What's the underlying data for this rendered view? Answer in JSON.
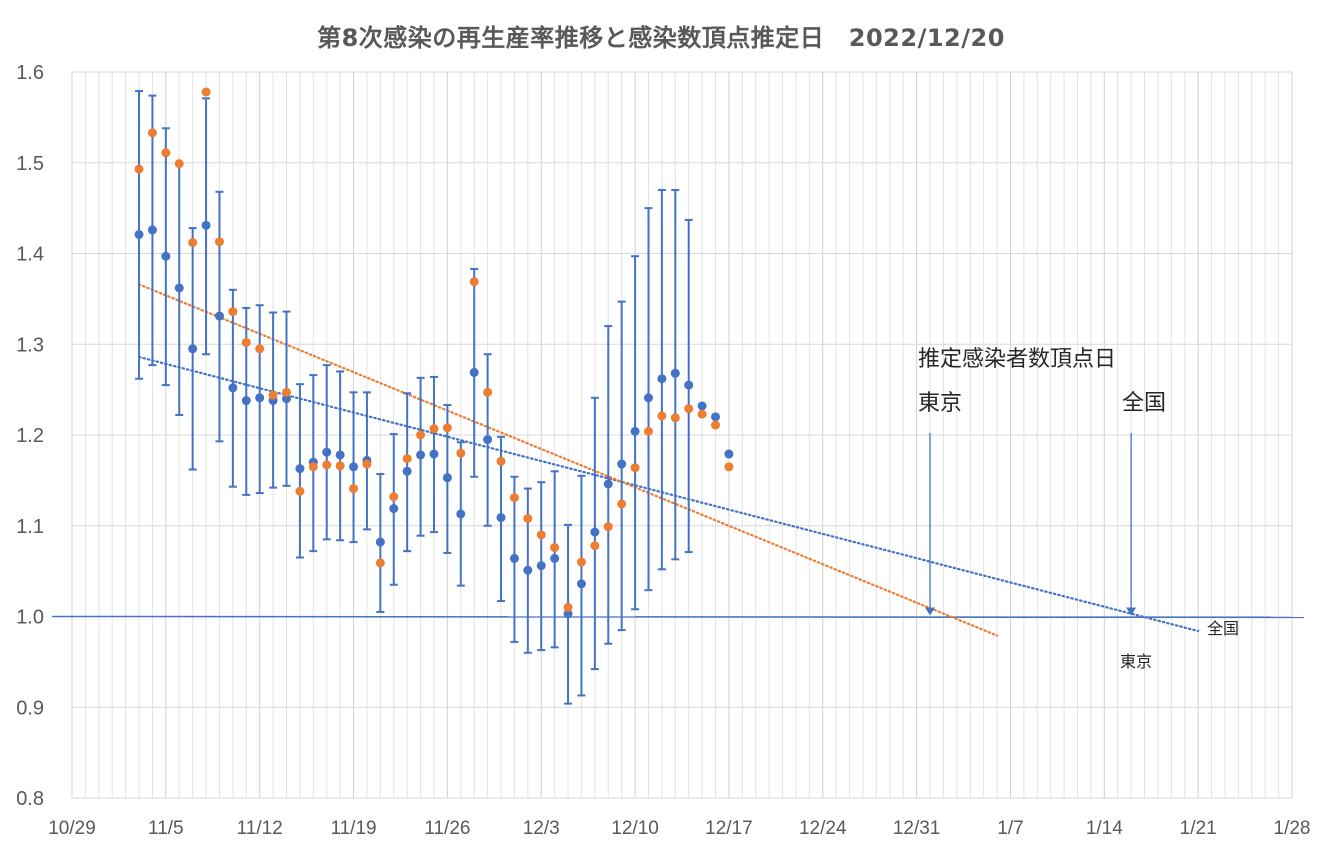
{
  "title": "第8次感染の再生産率推移と感染数頂点推定日　2022/12/20",
  "chart_data": {
    "type": "scatter",
    "title": "第8次感染の再生産率推移と感染数頂点推定日　2022/12/20",
    "xlabel": "",
    "ylabel": "",
    "ylim": [
      0.8,
      1.6
    ],
    "yticks": [
      "0.8",
      "0.9",
      "1.0",
      "1.1",
      "1.2",
      "1.3",
      "1.4",
      "1.5",
      "1.6"
    ],
    "xlim": [
      "2022-10-29",
      "2023-01-28"
    ],
    "xticks": [
      "10/29",
      "11/5",
      "11/12",
      "11/19",
      "11/26",
      "12/3",
      "12/10",
      "12/17",
      "12/24",
      "12/31",
      "1/7",
      "1/14",
      "1/21",
      "1/28"
    ],
    "grid": true,
    "series": [
      {
        "color": "#4472C4",
        "dates": [
          "2022-11-03",
          "2022-11-04",
          "2022-11-05",
          "2022-11-06",
          "2022-11-07",
          "2022-11-08",
          "2022-11-09",
          "2022-11-10",
          "2022-11-11",
          "2022-11-12",
          "2022-11-13",
          "2022-11-14",
          "2022-11-15",
          "2022-11-16",
          "2022-11-17",
          "2022-11-18",
          "2022-11-19",
          "2022-11-20",
          "2022-11-21",
          "2022-11-22",
          "2022-11-23",
          "2022-11-24",
          "2022-11-25",
          "2022-11-26",
          "2022-11-27",
          "2022-11-28",
          "2022-11-29",
          "2022-11-30",
          "2022-12-01",
          "2022-12-02",
          "2022-12-03",
          "2022-12-04",
          "2022-12-05",
          "2022-12-06",
          "2022-12-07",
          "2022-12-08",
          "2022-12-09",
          "2022-12-10",
          "2022-12-11",
          "2022-12-12",
          "2022-12-13",
          "2022-12-14",
          "2022-12-15",
          "2022-12-16",
          "2022-12-17"
        ],
        "values": [
          1.421,
          1.426,
          1.397,
          1.362,
          1.295,
          1.431,
          1.331,
          1.252,
          1.238,
          1.241,
          1.238,
          1.24,
          1.163,
          1.17,
          1.181,
          1.178,
          1.165,
          1.172,
          1.082,
          1.119,
          1.16,
          1.178,
          1.179,
          1.153,
          1.113,
          1.269,
          1.195,
          1.109,
          1.064,
          1.051,
          1.056,
          1.064,
          1.003,
          1.036,
          1.093,
          1.146,
          1.168,
          1.204,
          1.241,
          1.262,
          1.268,
          1.255,
          1.232,
          1.22,
          1.179
        ],
        "error_low": [
          1.262,
          1.277,
          1.255,
          1.222,
          1.162,
          1.289,
          1.193,
          1.143,
          1.134,
          1.136,
          1.142,
          1.144,
          1.065,
          1.072,
          1.085,
          1.084,
          1.082,
          1.096,
          1.005,
          1.035,
          1.072,
          1.089,
          1.093,
          1.07,
          1.034,
          1.154,
          1.1,
          1.017,
          0.972,
          0.96,
          0.963,
          0.966,
          0.904,
          0.913,
          0.942,
          0.97,
          0.985,
          1.008,
          1.029,
          1.052,
          1.063,
          1.071,
          null,
          null,
          null
        ],
        "error_high": [
          1.579,
          1.574,
          1.538,
          1.499,
          1.428,
          1.571,
          1.468,
          1.36,
          1.34,
          1.343,
          1.335,
          1.336,
          1.256,
          1.266,
          1.277,
          1.27,
          1.247,
          1.247,
          1.157,
          1.201,
          1.246,
          1.263,
          1.264,
          1.233,
          1.192,
          1.383,
          1.289,
          1.198,
          1.154,
          1.141,
          1.148,
          1.16,
          1.101,
          1.155,
          1.241,
          1.32,
          1.347,
          1.397,
          1.45,
          1.47,
          1.47,
          1.437,
          null,
          null,
          null
        ],
        "trendline": {
          "x": [
            "2022-11-03",
            "2023-01-21"
          ],
          "y": [
            1.286,
            0.984
          ]
        }
      },
      {
        "color": "#ED7D31",
        "dates": [
          "2022-11-03",
          "2022-11-04",
          "2022-11-05",
          "2022-11-06",
          "2022-11-07",
          "2022-11-08",
          "2022-11-09",
          "2022-11-10",
          "2022-11-11",
          "2022-11-12",
          "2022-11-13",
          "2022-11-14",
          "2022-11-15",
          "2022-11-16",
          "2022-11-17",
          "2022-11-18",
          "2022-11-19",
          "2022-11-20",
          "2022-11-21",
          "2022-11-22",
          "2022-11-23",
          "2022-11-24",
          "2022-11-25",
          "2022-11-26",
          "2022-11-27",
          "2022-11-28",
          "2022-11-29",
          "2022-11-30",
          "2022-12-01",
          "2022-12-02",
          "2022-12-03",
          "2022-12-04",
          "2022-12-05",
          "2022-12-06",
          "2022-12-07",
          "2022-12-08",
          "2022-12-09",
          "2022-12-10",
          "2022-12-11",
          "2022-12-12",
          "2022-12-13",
          "2022-12-14",
          "2022-12-15",
          "2022-12-16",
          "2022-12-17"
        ],
        "values": [
          1.493,
          1.533,
          1.511,
          1.499,
          1.412,
          1.578,
          1.413,
          1.336,
          1.302,
          1.295,
          1.244,
          1.247,
          1.138,
          1.165,
          1.167,
          1.166,
          1.141,
          1.168,
          1.059,
          1.132,
          1.174,
          1.2,
          1.207,
          1.208,
          1.18,
          1.369,
          1.247,
          1.171,
          1.131,
          1.108,
          1.09,
          1.076,
          1.01,
          1.06,
          1.078,
          1.099,
          1.124,
          1.164,
          1.204,
          1.221,
          1.219,
          1.229,
          1.223,
          1.211,
          1.165
        ],
        "trendline": {
          "x": [
            "2022-11-03",
            "2023-01-06"
          ],
          "y": [
            1.366,
            0.979
          ]
        }
      }
    ],
    "baseline": {
      "y": 1.0,
      "y_right": 0.999
    },
    "annotations": {
      "header": "推定感染者数頂点日",
      "tokyo_label": "東京",
      "zenkoku_label": "全国",
      "tokyo_date": "2023-01-01",
      "zenkoku_date": "2023-01-16",
      "end_label_zenkoku": "全国",
      "end_label_tokyo": "東京"
    }
  }
}
